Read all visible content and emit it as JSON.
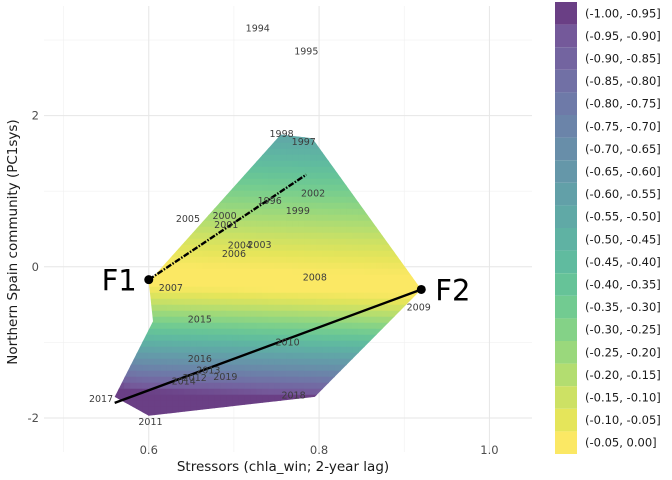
{
  "chart_data": {
    "type": "scatter",
    "title": "",
    "xlabel": "Stressors (chla_win; 2-year lag)",
    "ylabel": "Northern Spain community (PC1sys)",
    "xlim": [
      0.477,
      1.05
    ],
    "ylim": [
      -2.45,
      3.45
    ],
    "x_ticks": [
      {
        "value": 0.6,
        "label": "0.6"
      },
      {
        "value": 0.8,
        "label": "0.8"
      },
      {
        "value": 1.0,
        "label": "1.0"
      }
    ],
    "y_ticks": [
      {
        "value": -2,
        "label": "-2"
      },
      {
        "value": 0,
        "label": "0"
      },
      {
        "value": 2,
        "label": "2"
      }
    ],
    "grid": true,
    "legend_position": "right",
    "legend": [
      {
        "label": "(-1.00, -0.95]",
        "color": "#6a3f85"
      },
      {
        "label": "(-0.95, -0.90]",
        "color": "#74599a"
      },
      {
        "label": "(-0.90, -0.85]",
        "color": "#7364a0"
      },
      {
        "label": "(-0.85, -0.80]",
        "color": "#7170a5"
      },
      {
        "label": "(-0.80, -0.75]",
        "color": "#6e7aa8"
      },
      {
        "label": "(-0.75, -0.70]",
        "color": "#6b84a9"
      },
      {
        "label": "(-0.70, -0.65]",
        "color": "#688ea9"
      },
      {
        "label": "(-0.65, -0.60]",
        "color": "#6597a9"
      },
      {
        "label": "(-0.60, -0.55]",
        "color": "#62a0a8"
      },
      {
        "label": "(-0.55, -0.50]",
        "color": "#60a9a6"
      },
      {
        "label": "(-0.50, -0.45]",
        "color": "#5fb2a3"
      },
      {
        "label": "(-0.45, -0.40]",
        "color": "#60bb9f"
      },
      {
        "label": "(-0.40, -0.35]",
        "color": "#66c398"
      },
      {
        "label": "(-0.35, -0.30]",
        "color": "#72cb91"
      },
      {
        "label": "(-0.30, -0.25]",
        "color": "#84d287"
      },
      {
        "label": "(-0.25, -0.20]",
        "color": "#9ad87c"
      },
      {
        "label": "(-0.20, -0.15]",
        "color": "#b3dd70"
      },
      {
        "label": "(-0.15, -0.10]",
        "color": "#cde164"
      },
      {
        "label": "(-0.10, -0.05]",
        "color": "#e5e55a"
      },
      {
        "label": "(-0.05, 0.00]",
        "color": "#fbe864"
      }
    ],
    "points": [
      {
        "year": "1994",
        "x": 0.728,
        "y": 3.15
      },
      {
        "year": "1995",
        "x": 0.785,
        "y": 2.85
      },
      {
        "year": "1996",
        "x": 0.742,
        "y": 0.87
      },
      {
        "year": "1997",
        "x": 0.782,
        "y": 1.65
      },
      {
        "year": "1998",
        "x": 0.756,
        "y": 1.76
      },
      {
        "year": "1999",
        "x": 0.775,
        "y": 0.74
      },
      {
        "year": "2000",
        "x": 0.689,
        "y": 0.67
      },
      {
        "year": "2001",
        "x": 0.691,
        "y": 0.55
      },
      {
        "year": "2002",
        "x": 0.793,
        "y": 0.97
      },
      {
        "year": "2003",
        "x": 0.73,
        "y": 0.29
      },
      {
        "year": "2004",
        "x": 0.707,
        "y": 0.28
      },
      {
        "year": "2005",
        "x": 0.646,
        "y": 0.63
      },
      {
        "year": "2006",
        "x": 0.7,
        "y": 0.17
      },
      {
        "year": "2007",
        "x": 0.626,
        "y": -0.28
      },
      {
        "year": "2008",
        "x": 0.795,
        "y": -0.14
      },
      {
        "year": "2009",
        "x": 0.917,
        "y": -0.54
      },
      {
        "year": "2010",
        "x": 0.763,
        "y": -1.0
      },
      {
        "year": "2011",
        "x": 0.602,
        "y": -2.05
      },
      {
        "year": "2012",
        "x": 0.654,
        "y": -1.47
      },
      {
        "year": "2013",
        "x": 0.67,
        "y": -1.37
      },
      {
        "year": "2014",
        "x": 0.641,
        "y": -1.52
      },
      {
        "year": "2015",
        "x": 0.66,
        "y": -0.7
      },
      {
        "year": "2016",
        "x": 0.66,
        "y": -1.22
      },
      {
        "year": "2017",
        "x": 0.544,
        "y": -1.75
      },
      {
        "year": "2018",
        "x": 0.77,
        "y": -1.7
      },
      {
        "year": "2019",
        "x": 0.69,
        "y": -1.46
      }
    ],
    "hull": [
      {
        "x": 0.6,
        "y": -0.2
      },
      {
        "x": 0.755,
        "y": 1.75
      },
      {
        "x": 0.792,
        "y": 1.7
      },
      {
        "x": 0.92,
        "y": -0.3
      },
      {
        "x": 0.795,
        "y": -1.72
      },
      {
        "x": 0.6,
        "y": -1.97
      },
      {
        "x": 0.56,
        "y": -1.72
      },
      {
        "x": 0.605,
        "y": -0.72
      }
    ],
    "focal_points": [
      {
        "label": "F1",
        "x": 0.6,
        "y": -0.17
      },
      {
        "label": "F2",
        "x": 0.92,
        "y": -0.3
      }
    ],
    "trend_lines": [
      {
        "from": {
          "x": 0.6,
          "y": -0.17
        },
        "to": {
          "x": 0.785,
          "y": 1.22
        }
      },
      {
        "from": {
          "x": 0.56,
          "y": -1.8
        },
        "to": {
          "x": 0.92,
          "y": -0.3
        }
      }
    ]
  }
}
